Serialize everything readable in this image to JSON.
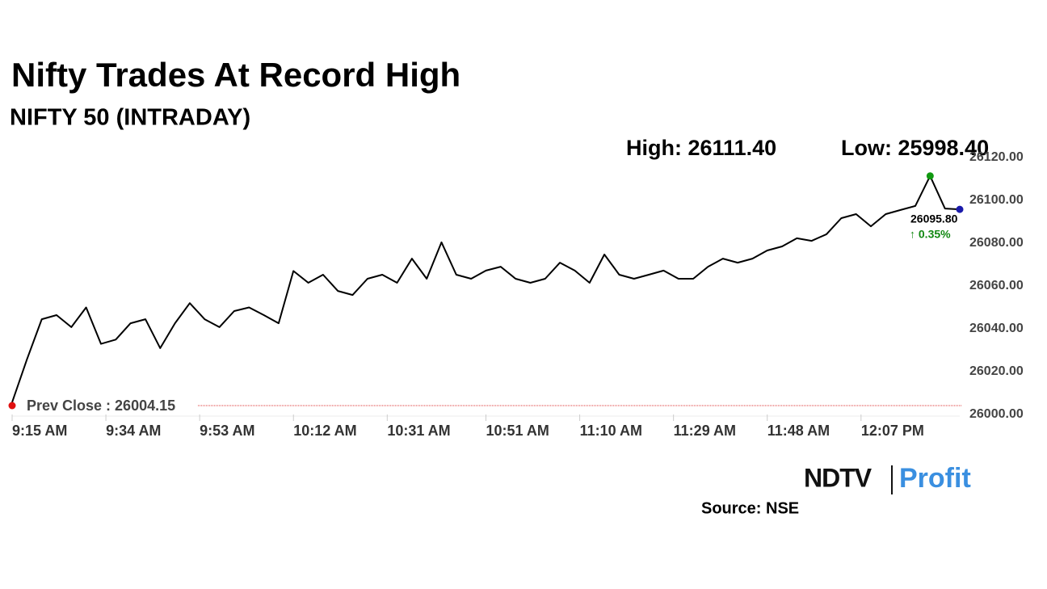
{
  "chart_data": {
    "type": "line",
    "title": "Nifty Trades At Record High",
    "subtitle": "NIFTY 50 (INTRADAY)",
    "high_label": "High: 26111.40",
    "low_label": "Low: 25998.40",
    "prev_close": 26004.15,
    "prev_close_label": "Prev Close : 26004.15",
    "last_label": "26095.80",
    "change_label": "↑ 0.35%",
    "color": "#000000",
    "x": [
      555,
      558,
      561,
      564,
      567,
      570,
      573,
      576,
      579,
      582,
      585,
      588,
      591,
      594,
      597,
      600,
      603,
      606,
      609,
      612,
      615,
      618,
      621,
      624,
      627,
      630,
      633,
      636,
      639,
      642,
      645,
      648,
      651,
      654,
      657,
      660,
      663,
      666,
      669,
      672,
      675,
      678,
      681,
      684,
      687,
      690,
      693,
      696,
      699,
      702,
      705,
      708,
      711,
      714,
      717,
      720,
      723,
      726,
      729,
      732,
      735,
      738,
      741,
      744,
      747
    ],
    "values": [
      26005.7,
      26025.7,
      26044.5,
      26046.4,
      26040.8,
      26050,
      26033,
      26035,
      26042.6,
      26044.5,
      26031,
      26042.6,
      26052,
      26044.5,
      26040.8,
      26048.3,
      26050,
      26046.4,
      26042.6,
      26067,
      26061.5,
      26065.3,
      26057.7,
      26055.8,
      26063.4,
      26065.3,
      26061.5,
      26072.8,
      26063.4,
      26080.4,
      26065.3,
      26063.4,
      26067.2,
      26069,
      26063.4,
      26061.5,
      26063.4,
      26070.9,
      26067.2,
      26061.5,
      26074.7,
      26065.3,
      26063.4,
      26065.3,
      26067.2,
      26063.4,
      26063.4,
      26069,
      26072.8,
      26070.9,
      26072.8,
      26076.6,
      26078.5,
      26082.3,
      26081.1,
      26084.2,
      26091.7,
      26093.6,
      26087.9,
      26093.6,
      26095.5,
      26097.4,
      26111.4,
      26096.2,
      26095.8
    ],
    "xlim": [
      555,
      747
    ],
    "xticks": [
      {
        "value": 555,
        "label": "9:15 AM"
      },
      {
        "value": 574,
        "label": "9:34 AM"
      },
      {
        "value": 593,
        "label": "9:53 AM"
      },
      {
        "value": 612,
        "label": "10:12 AM"
      },
      {
        "value": 631,
        "label": "10:31 AM"
      },
      {
        "value": 651,
        "label": "10:51 AM"
      },
      {
        "value": 670,
        "label": "11:10 AM"
      },
      {
        "value": 689,
        "label": "11:29 AM"
      },
      {
        "value": 708,
        "label": "11:48 AM"
      },
      {
        "value": 727,
        "label": "12:07 PM"
      }
    ],
    "ylim": [
      26000,
      26120
    ],
    "yticks": [
      {
        "value": 26000,
        "label": "26000.00"
      },
      {
        "value": 26020,
        "label": "26020.00"
      },
      {
        "value": 26040,
        "label": "26040.00"
      },
      {
        "value": 26060,
        "label": "26060.00"
      },
      {
        "value": 26080,
        "label": "26080.00"
      },
      {
        "value": 26100,
        "label": "26100.00"
      },
      {
        "value": 26120,
        "label": "26120.00"
      }
    ],
    "grid": false
  },
  "logo": {
    "brand": "NDTV",
    "product": "Profit"
  },
  "source": "Source: NSE"
}
